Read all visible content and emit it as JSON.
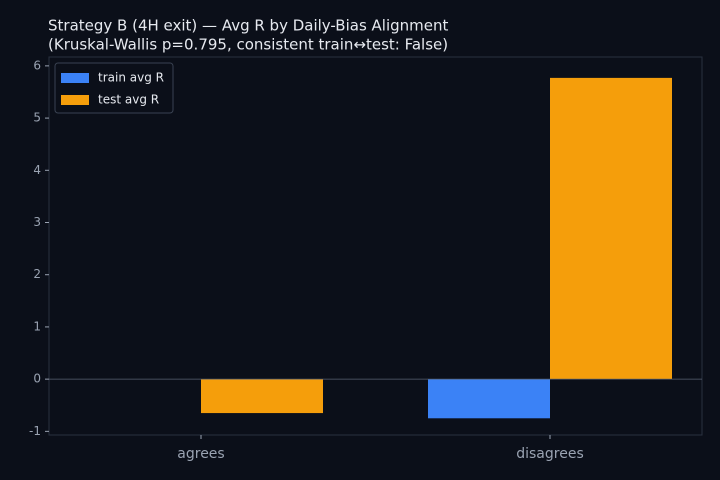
{
  "chart_data": {
    "type": "bar",
    "title": "Strategy B (4H exit) — Avg R by Daily-Bias Alignment",
    "subtitle": "(Kruskal-Wallis p=0.795, consistent train↔test: False)",
    "categories": [
      "agrees",
      "disagrees"
    ],
    "series": [
      {
        "name": "train avg R",
        "color": "#3b82f6",
        "values": [
          0,
          -0.75
        ]
      },
      {
        "name": "test avg R",
        "color": "#f59e0b",
        "values": [
          -0.65,
          5.77
        ]
      }
    ],
    "ylim": [
      -1.07,
      6.17
    ],
    "yticks": [
      -1,
      0,
      1,
      2,
      3,
      4,
      5,
      6
    ],
    "legend": "upper left"
  }
}
